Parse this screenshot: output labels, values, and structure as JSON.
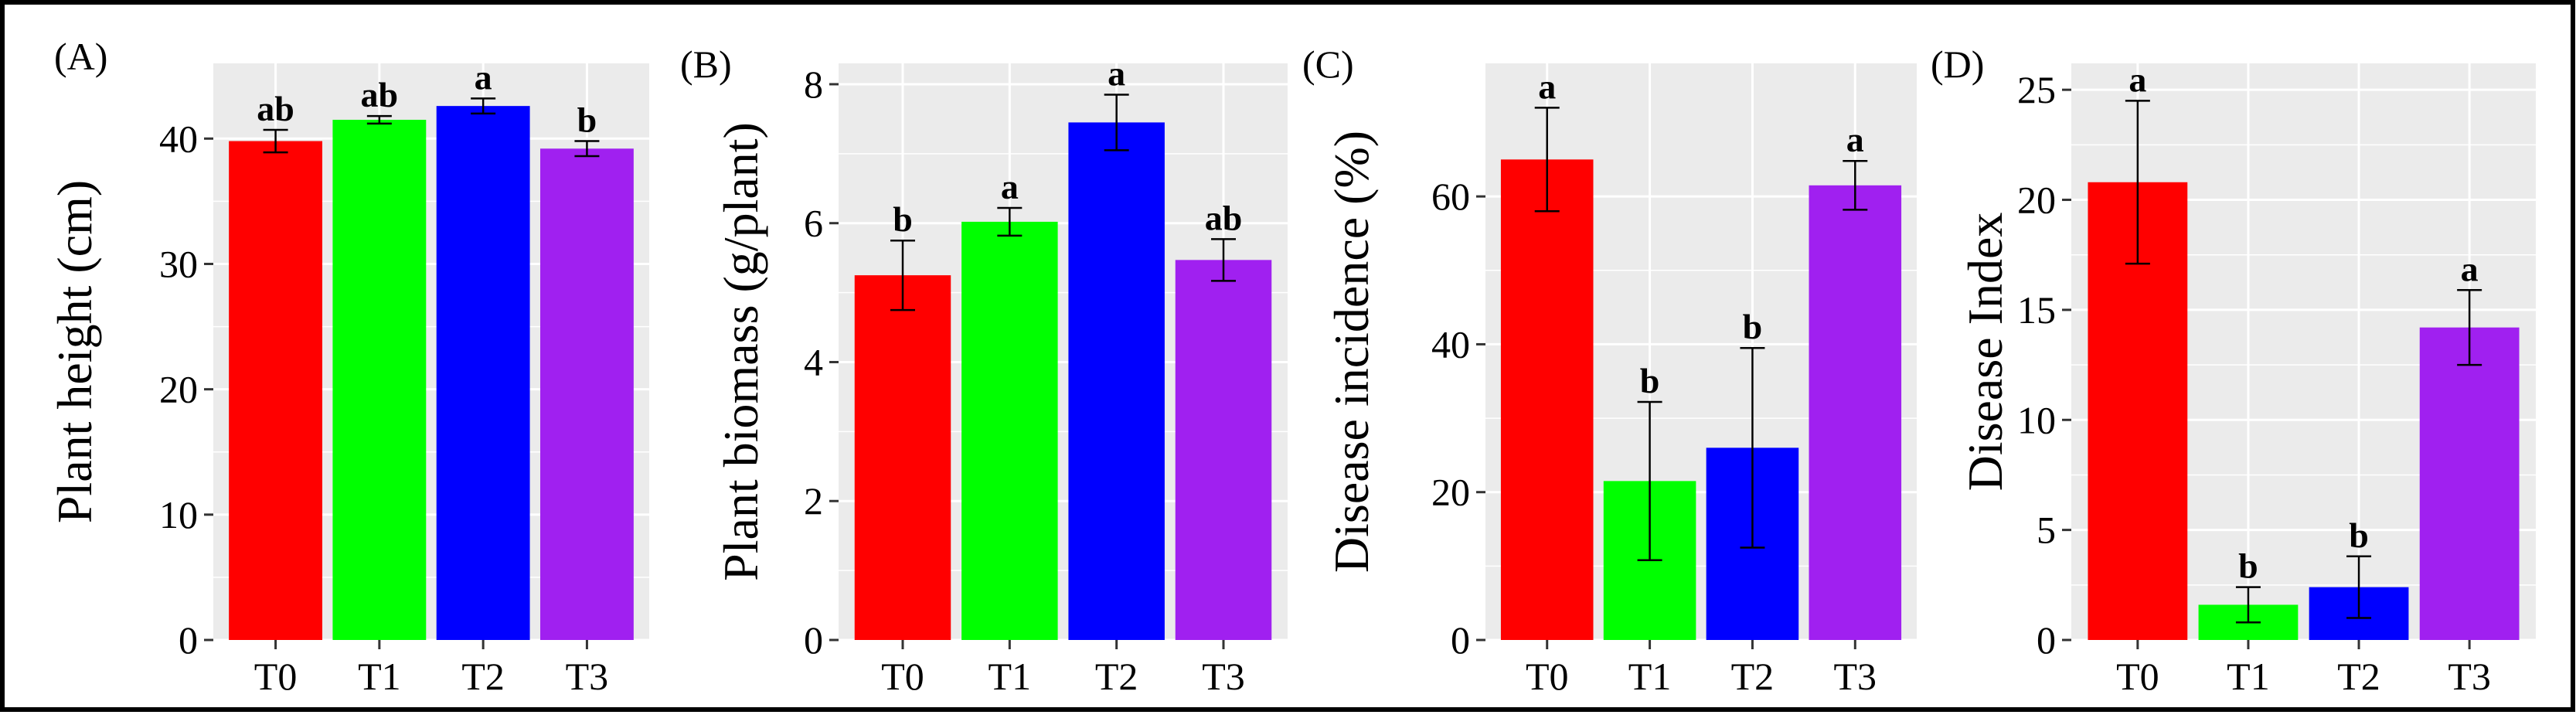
{
  "figure": {
    "colors": {
      "T0": "#ff0000",
      "T1": "#00ff00",
      "T2": "#0000ff",
      "T3": "#a020f0",
      "panel_bg": "#ebebeb",
      "grid": "#ffffff",
      "frame": "#000000"
    }
  },
  "chart_data": [
    {
      "type": "bar",
      "label": "(A)",
      "categories": [
        "T0",
        "T1",
        "T2",
        "T3"
      ],
      "values": [
        39.8,
        41.5,
        42.6,
        39.2
      ],
      "errors": [
        0.9,
        0.3,
        0.6,
        0.6
      ],
      "letters": [
        "ab",
        "ab",
        "a",
        "b"
      ],
      "ylabel": "Plant height (cm)",
      "ylim": [
        0,
        46
      ],
      "yticks": [
        0,
        10,
        20,
        30,
        40
      ]
    },
    {
      "type": "bar",
      "label": "(B)",
      "categories": [
        "T0",
        "T1",
        "T2",
        "T3"
      ],
      "values": [
        5.25,
        6.02,
        7.45,
        5.47
      ],
      "errors": [
        0.5,
        0.2,
        0.4,
        0.3
      ],
      "letters": [
        "b",
        "a",
        "a",
        "ab"
      ],
      "ylabel": "Plant biomass (g/plant)",
      "ylim": [
        0,
        8.3
      ],
      "yticks": [
        0,
        2,
        4,
        6,
        8
      ]
    },
    {
      "type": "bar",
      "label": "(C)",
      "categories": [
        "T0",
        "T1",
        "T2",
        "T3"
      ],
      "values": [
        65,
        21.5,
        26,
        61.5
      ],
      "errors": [
        7,
        10.7,
        13.5,
        3.3
      ],
      "letters": [
        "a",
        "b",
        "b",
        "a"
      ],
      "ylabel": "Disease incidence (%)",
      "ylim": [
        0,
        78
      ],
      "yticks": [
        0,
        20,
        40,
        60
      ]
    },
    {
      "type": "bar",
      "label": "(D)",
      "categories": [
        "T0",
        "T1",
        "T2",
        "T3"
      ],
      "values": [
        20.8,
        1.6,
        2.4,
        14.2
      ],
      "errors": [
        3.7,
        0.8,
        1.4,
        1.7
      ],
      "letters": [
        "a",
        "b",
        "b",
        "a"
      ],
      "ylabel": "Disease Index",
      "ylim": [
        0,
        26.2
      ],
      "yticks": [
        0,
        5,
        10,
        15,
        20,
        25
      ]
    }
  ]
}
